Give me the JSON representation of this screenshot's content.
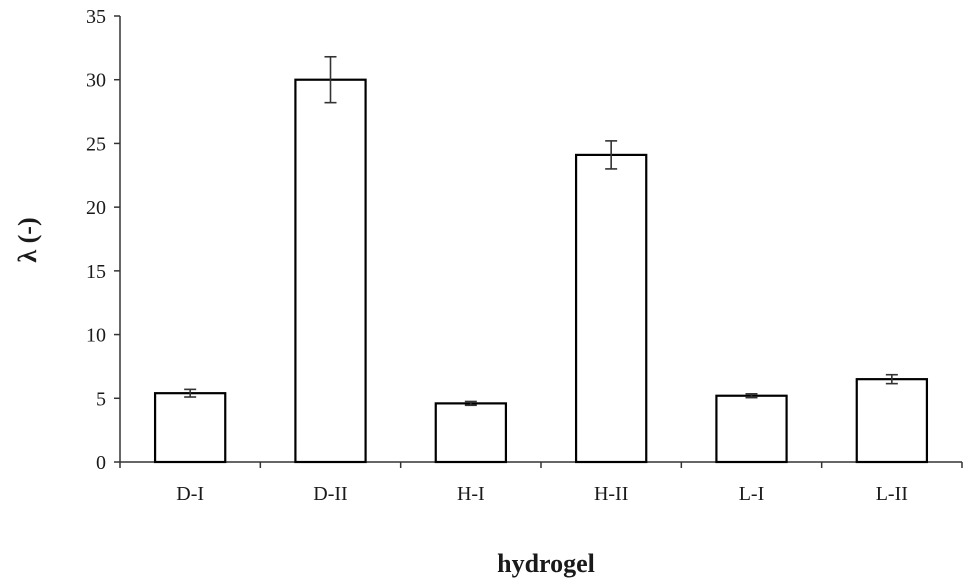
{
  "chart_data": {
    "type": "bar",
    "xlabel": "hydrogel",
    "ylabel": "λ (-)",
    "categories": [
      "D-I",
      "D-II",
      "H-I",
      "H-II",
      "L-I",
      "L-II"
    ],
    "values": [
      5.4,
      30.0,
      4.6,
      24.1,
      5.2,
      6.5
    ],
    "errors": [
      0.3,
      1.8,
      0.15,
      1.1,
      0.15,
      0.35
    ],
    "ylim": [
      0,
      35
    ],
    "yticks": [
      0,
      5,
      10,
      15,
      20,
      25,
      30,
      35
    ],
    "grid": false,
    "bar_fill": "#ffffff",
    "bar_stroke": "#000000"
  }
}
